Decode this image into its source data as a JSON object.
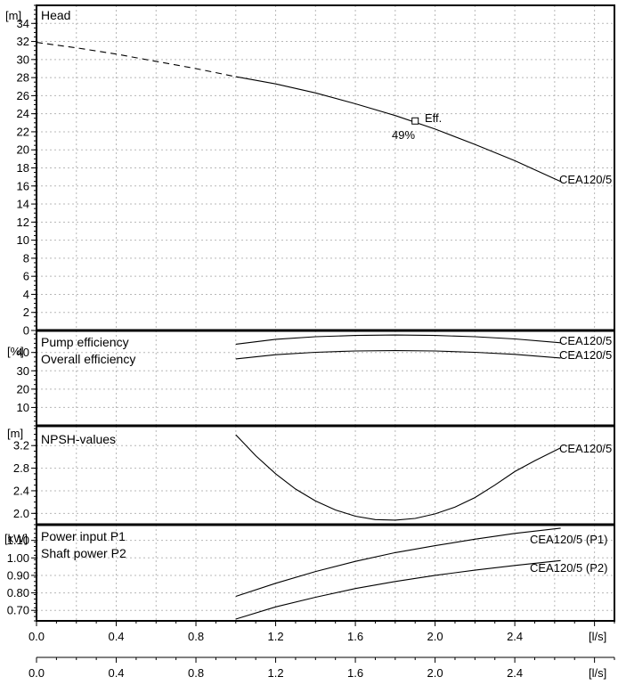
{
  "chart_data": [
    {
      "type": "line",
      "panel": "head",
      "unit": "[m]",
      "legend": [
        "Head"
      ],
      "yticks": [
        0,
        2,
        4,
        6,
        8,
        10,
        12,
        14,
        16,
        18,
        20,
        22,
        24,
        26,
        28,
        30,
        32,
        34
      ],
      "ylim": [
        0,
        36
      ],
      "grid": true,
      "series": [
        {
          "name": "CEA120/5",
          "x": [
            1.0,
            1.2,
            1.4,
            1.6,
            1.8,
            2.0,
            2.2,
            2.4,
            2.6,
            2.63
          ],
          "y": [
            28.1,
            27.3,
            26.3,
            25.1,
            23.8,
            22.3,
            20.6,
            18.8,
            16.8,
            16.5
          ]
        },
        {
          "name": "",
          "style": "dashed",
          "x": [
            0.0,
            0.2,
            0.4,
            0.6,
            0.8,
            1.0
          ],
          "y": [
            31.9,
            31.3,
            30.6,
            29.8,
            29.0,
            28.1
          ]
        }
      ],
      "marker": {
        "x": 1.9,
        "y": 23.2,
        "label": "Eff.",
        "value_label": "49%"
      }
    },
    {
      "type": "line",
      "panel": "efficiency",
      "unit": "[%]",
      "legend": [
        "Pump efficiency",
        "Overall efficiency"
      ],
      "yticks": [
        10,
        20,
        30,
        40
      ],
      "ylim": [
        0,
        52
      ],
      "grid": true,
      "series": [
        {
          "name": "CEA120/5",
          "x": [
            1.0,
            1.2,
            1.4,
            1.6,
            1.8,
            2.0,
            2.2,
            2.4,
            2.63
          ],
          "y": [
            44.5,
            47.2,
            48.6,
            49.3,
            49.5,
            49.3,
            48.6,
            47.4,
            45.3
          ]
        },
        {
          "name": "CEA120/5",
          "x": [
            1.0,
            1.2,
            1.4,
            1.6,
            1.8,
            2.0,
            2.2,
            2.4,
            2.63
          ],
          "y": [
            36.5,
            38.8,
            40.1,
            40.8,
            41.0,
            40.8,
            40.1,
            39.0,
            37.0
          ]
        }
      ]
    },
    {
      "type": "line",
      "panel": "npsh",
      "unit": "[m]",
      "legend": [
        "NPSH-values"
      ],
      "yticks": [
        2.0,
        2.4,
        2.8,
        3.2
      ],
      "ylim": [
        1.8,
        3.55
      ],
      "grid": true,
      "series": [
        {
          "name": "CEA120/5",
          "x": [
            1.0,
            1.1,
            1.2,
            1.3,
            1.4,
            1.5,
            1.6,
            1.7,
            1.8,
            1.9,
            2.0,
            2.1,
            2.2,
            2.3,
            2.4,
            2.5,
            2.63
          ],
          "y": [
            3.39,
            3.02,
            2.7,
            2.43,
            2.22,
            2.06,
            1.95,
            1.89,
            1.88,
            1.91,
            1.99,
            2.11,
            2.28,
            2.5,
            2.74,
            2.93,
            3.16
          ]
        }
      ]
    },
    {
      "type": "line",
      "panel": "power",
      "unit": "[kW]",
      "legend": [
        "Power input P1",
        "Shaft power P2"
      ],
      "yticks": [
        0.7,
        0.8,
        0.9,
        1.0,
        1.1
      ],
      "ylim": [
        0.64,
        1.19
      ],
      "grid": true,
      "series": [
        {
          "name": "CEA120/5 (P1)",
          "x": [
            1.0,
            1.2,
            1.4,
            1.6,
            1.8,
            2.0,
            2.2,
            2.4,
            2.63
          ],
          "y": [
            0.78,
            0.855,
            0.922,
            0.98,
            1.03,
            1.07,
            1.107,
            1.14,
            1.17
          ]
        },
        {
          "name": "CEA120/5 (P2)",
          "x": [
            1.0,
            1.2,
            1.4,
            1.6,
            1.8,
            2.0,
            2.2,
            2.4,
            2.63
          ],
          "y": [
            0.65,
            0.72,
            0.775,
            0.825,
            0.865,
            0.9,
            0.93,
            0.957,
            0.985
          ]
        }
      ]
    }
  ],
  "x_axis": {
    "ticks": [
      "0.0",
      "0.4",
      "0.8",
      "1.2",
      "1.6",
      "2.0",
      "2.4"
    ],
    "tick_values": [
      0.0,
      0.4,
      0.8,
      1.2,
      1.6,
      2.0,
      2.4
    ],
    "xlim": [
      0.0,
      2.9
    ],
    "unit": "[l/s]"
  }
}
